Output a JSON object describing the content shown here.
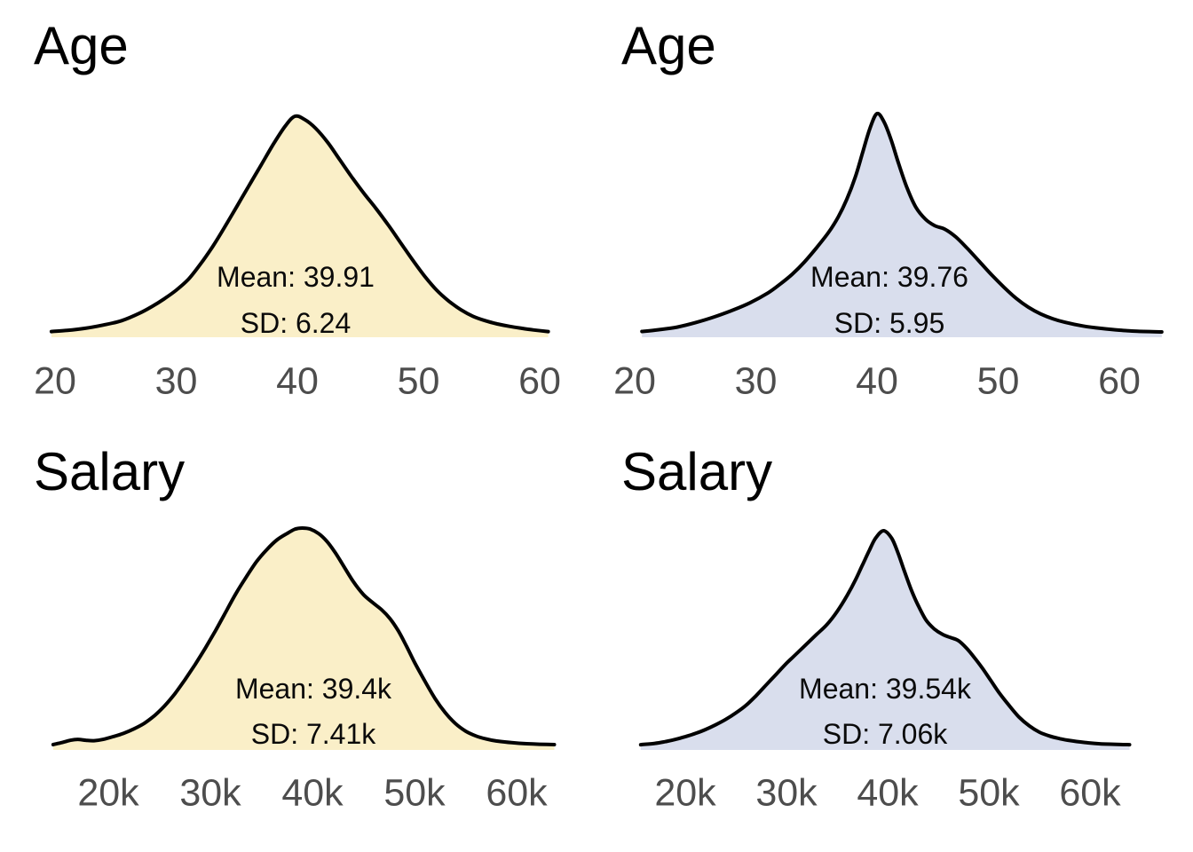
{
  "chart_data": [
    {
      "type": "area",
      "subtype": "kde-density",
      "title": "Age",
      "mean": 39.91,
      "sd": 6.24,
      "annotation": [
        "Mean: 39.91",
        "SD: 6.24"
      ],
      "x_ticks": [
        "20",
        "30",
        "40",
        "50",
        "60"
      ],
      "x_tick_values": [
        20,
        30,
        40,
        50,
        60
      ],
      "x_range": [
        19.7,
        60.7
      ],
      "fill_color": "#FAEFC8",
      "line_color": "#000000",
      "tick_color": "#4d4d4d",
      "grid": false,
      "legend": false,
      "y_axis_shown": false,
      "density": {
        "x": [
          19.7,
          21,
          22.5,
          24,
          25.5,
          27,
          28,
          29,
          30,
          31,
          32,
          33,
          34,
          35,
          36,
          37,
          38,
          39,
          39.8,
          40.6,
          41.5,
          42.5,
          43.5,
          44.5,
          45.5,
          46.5,
          47.5,
          48.5,
          49.5,
          50.5,
          51.5,
          52.5,
          53.5,
          54.5,
          55.5,
          56.5,
          57.5,
          58.5,
          59.5,
          60.7
        ],
        "y_rel": [
          0.01,
          0.015,
          0.025,
          0.04,
          0.06,
          0.095,
          0.125,
          0.16,
          0.2,
          0.25,
          0.32,
          0.4,
          0.49,
          0.585,
          0.68,
          0.775,
          0.87,
          0.955,
          1.0,
          0.985,
          0.945,
          0.88,
          0.8,
          0.72,
          0.645,
          0.575,
          0.5,
          0.42,
          0.34,
          0.265,
          0.2,
          0.15,
          0.11,
          0.08,
          0.06,
          0.045,
          0.034,
          0.025,
          0.017,
          0.01
        ]
      }
    },
    {
      "type": "area",
      "subtype": "kde-density",
      "title": "Age",
      "mean": 39.76,
      "sd": 5.95,
      "annotation": [
        "Mean: 39.76",
        "SD: 5.95"
      ],
      "x_ticks": [
        "20",
        "30",
        "40",
        "50",
        "60"
      ],
      "x_tick_values": [
        20,
        30,
        40,
        50,
        60
      ],
      "x_range": [
        20.6,
        63.5
      ],
      "fill_color": "#D9DEED",
      "line_color": "#000000",
      "tick_color": "#4d4d4d",
      "grid": false,
      "legend": false,
      "y_axis_shown": false,
      "density": {
        "x": [
          20.6,
          22,
          23.5,
          25,
          26.5,
          28,
          29.5,
          31,
          32,
          33,
          34,
          35,
          36,
          36.8,
          37.5,
          38.2,
          38.8,
          39.4,
          40,
          40.6,
          41.2,
          41.8,
          42.5,
          43.2,
          44,
          44.8,
          45.6,
          46.5,
          47.5,
          48.5,
          49.5,
          50.5,
          51.5,
          52.5,
          53.5,
          54.5,
          55.5,
          57,
          58.5,
          60,
          61.5,
          63.5
        ],
        "y_rel": [
          0.01,
          0.018,
          0.03,
          0.05,
          0.075,
          0.105,
          0.14,
          0.185,
          0.225,
          0.27,
          0.325,
          0.39,
          0.46,
          0.53,
          0.61,
          0.71,
          0.82,
          0.93,
          1.0,
          0.96,
          0.875,
          0.77,
          0.66,
          0.575,
          0.52,
          0.49,
          0.475,
          0.44,
          0.385,
          0.325,
          0.265,
          0.21,
          0.16,
          0.12,
          0.09,
          0.068,
          0.052,
          0.035,
          0.024,
          0.016,
          0.011,
          0.008
        ]
      }
    },
    {
      "type": "area",
      "subtype": "kde-density",
      "title": "Salary",
      "mean": "39.4k",
      "sd": "7.41k",
      "annotation": [
        "Mean: 39.4k",
        "SD: 7.41k"
      ],
      "x_ticks": [
        "20k",
        "30k",
        "40k",
        "50k",
        "60k"
      ],
      "x_tick_values": [
        20000,
        30000,
        40000,
        50000,
        60000
      ],
      "x_range": [
        14600,
        63700
      ],
      "fill_color": "#FAEFC8",
      "line_color": "#000000",
      "tick_color": "#4d4d4d",
      "grid": false,
      "legend": false,
      "y_axis_shown": false,
      "density": {
        "x": [
          14.6,
          15.5,
          16.3,
          17,
          17.8,
          18.6,
          19.5,
          20.5,
          21.5,
          22.5,
          23.5,
          24.5,
          25.5,
          26.5,
          27.5,
          28.5,
          29.5,
          30.5,
          31.5,
          32.5,
          33.5,
          34.5,
          35.5,
          36.5,
          37.5,
          38.3,
          39,
          39.8,
          40.6,
          41.4,
          42.2,
          43,
          44,
          45,
          46,
          46.8,
          47.6,
          48.4,
          49.2,
          50,
          51,
          52,
          53,
          54,
          55,
          56,
          57,
          58,
          59.5,
          61,
          63.7
        ],
        "y_rel": [
          0.008,
          0.018,
          0.028,
          0.032,
          0.028,
          0.026,
          0.032,
          0.045,
          0.06,
          0.08,
          0.105,
          0.14,
          0.185,
          0.24,
          0.305,
          0.375,
          0.45,
          0.53,
          0.615,
          0.7,
          0.775,
          0.845,
          0.9,
          0.945,
          0.975,
          0.995,
          1.0,
          0.995,
          0.975,
          0.94,
          0.89,
          0.83,
          0.755,
          0.695,
          0.655,
          0.625,
          0.585,
          0.53,
          0.46,
          0.385,
          0.3,
          0.22,
          0.155,
          0.105,
          0.07,
          0.048,
          0.034,
          0.025,
          0.017,
          0.012,
          0.008
        ]
      }
    },
    {
      "type": "area",
      "subtype": "kde-density",
      "title": "Salary",
      "mean": "39.54k",
      "sd": "7.06k",
      "annotation": [
        "Mean: 39.54k",
        "SD: 7.06k"
      ],
      "x_ticks": [
        "20k",
        "30k",
        "40k",
        "50k",
        "60k"
      ],
      "x_tick_values": [
        20000,
        30000,
        40000,
        50000,
        60000
      ],
      "x_range": [
        15600,
        63900
      ],
      "fill_color": "#D9DEED",
      "line_color": "#000000",
      "tick_color": "#4d4d4d",
      "grid": false,
      "legend": false,
      "y_axis_shown": false,
      "density": {
        "x": [
          15.6,
          17,
          18,
          19,
          20,
          21,
          22,
          23,
          24,
          25,
          26,
          27,
          28,
          29,
          30,
          31,
          32,
          33,
          34,
          35,
          36,
          36.8,
          37.5,
          38.2,
          38.8,
          39.6,
          40.4,
          41,
          41.6,
          42.3,
          43,
          43.8,
          44.6,
          45.4,
          46.2,
          47,
          47.8,
          48.6,
          49.4,
          50.2,
          51,
          52,
          53,
          54,
          55,
          56,
          57,
          58,
          59.5,
          61,
          63.9
        ],
        "y_rel": [
          0.008,
          0.014,
          0.022,
          0.032,
          0.045,
          0.06,
          0.078,
          0.1,
          0.125,
          0.155,
          0.19,
          0.235,
          0.285,
          0.335,
          0.385,
          0.43,
          0.475,
          0.52,
          0.565,
          0.625,
          0.7,
          0.77,
          0.84,
          0.91,
          0.965,
          1.0,
          0.965,
          0.9,
          0.82,
          0.73,
          0.655,
          0.585,
          0.545,
          0.52,
          0.505,
          0.49,
          0.455,
          0.41,
          0.36,
          0.305,
          0.25,
          0.19,
          0.135,
          0.095,
          0.066,
          0.048,
          0.036,
          0.027,
          0.018,
          0.012,
          0.008
        ]
      }
    }
  ]
}
